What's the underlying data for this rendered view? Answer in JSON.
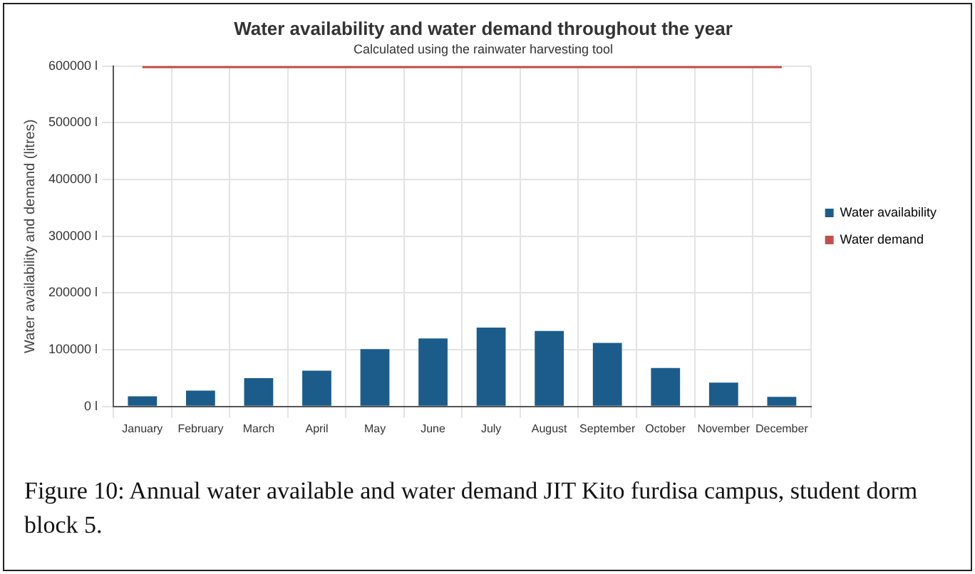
{
  "chart_data": {
    "type": "bar",
    "title": "Water availability and water demand throughout the year",
    "subtitle": "Calculated using the rainwater harvesting tool",
    "ylabel": "Water availability and demand (litres)",
    "categories": [
      "January",
      "February",
      "March",
      "April",
      "May",
      "June",
      "July",
      "August",
      "September",
      "October",
      "November",
      "December"
    ],
    "series": [
      {
        "name": "Water availability",
        "color": "#1b5c8a",
        "values": [
          18000,
          28000,
          50000,
          63000,
          101000,
          120000,
          139000,
          133000,
          112000,
          68000,
          42000,
          17000
        ]
      },
      {
        "name": "Water demand",
        "type": "line",
        "color": "#c0504d",
        "values": [
          600000,
          600000,
          600000,
          600000,
          600000,
          600000,
          600000,
          600000,
          600000,
          600000,
          600000,
          600000
        ]
      }
    ],
    "ylim": [
      0,
      600000
    ],
    "yticks": [
      {
        "value": 0,
        "label": "0 l"
      },
      {
        "value": 100000,
        "label": "100000 l"
      },
      {
        "value": 200000,
        "label": "200000 l"
      },
      {
        "value": 300000,
        "label": "300000 l"
      },
      {
        "value": 400000,
        "label": "400000 l"
      },
      {
        "value": 500000,
        "label": "500000 l"
      },
      {
        "value": 600000,
        "label": "600000 l"
      }
    ],
    "grid": true,
    "legend": "right",
    "marker": "none",
    "annotations": [
      "Figure 10: Annual water available and water demand JIT Kito furdisa campus, student dorm block 5."
    ]
  }
}
